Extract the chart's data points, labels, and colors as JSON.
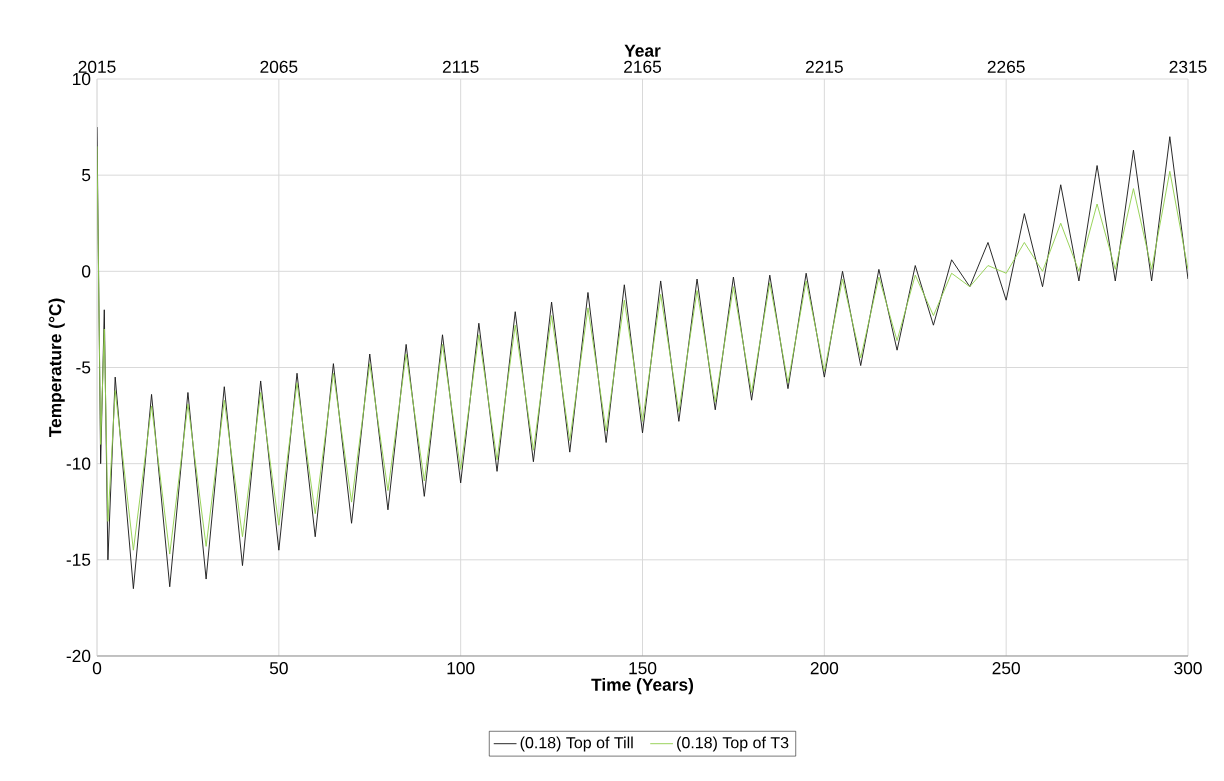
{
  "chart_data": {
    "type": "line",
    "xlabel": "Time (Years)",
    "ylabel": "Temperature (°C)",
    "x2label": "Year",
    "xlim": [
      0,
      300
    ],
    "xticks": [
      0,
      50,
      100,
      150,
      200,
      250,
      300
    ],
    "x2lim": [
      2015,
      2315
    ],
    "x2ticks": [
      2015,
      2065,
      2115,
      2165,
      2215,
      2265,
      2315
    ],
    "ylim": [
      -20,
      10
    ],
    "yticks": [
      -20,
      -15,
      -10,
      -5,
      0,
      5,
      10
    ],
    "grid": true,
    "legend": "bottom",
    "x": [
      0,
      1,
      2,
      3,
      5,
      10,
      15,
      20,
      25,
      30,
      35,
      40,
      45,
      50,
      55,
      60,
      65,
      70,
      75,
      80,
      85,
      90,
      95,
      100,
      105,
      110,
      115,
      120,
      125,
      130,
      135,
      140,
      145,
      150,
      155,
      160,
      165,
      170,
      175,
      180,
      185,
      190,
      195,
      200,
      205,
      210,
      215,
      220,
      225,
      230,
      235,
      240,
      245,
      250,
      255,
      260,
      265,
      270,
      275,
      280,
      285,
      290,
      295,
      300
    ],
    "series": [
      {
        "name": "(0.18) Top of Till",
        "color": "#1a1a1a",
        "values": [
          7.5,
          -10,
          -2,
          -15,
          -5.5,
          -16.5,
          -6.4,
          -16.4,
          -6.3,
          -16,
          -6,
          -15.3,
          -5.7,
          -14.5,
          -5.3,
          -13.8,
          -4.8,
          -13.1,
          -4.3,
          -12.4,
          -3.8,
          -11.7,
          -3.3,
          -11,
          -2.7,
          -10.4,
          -2.1,
          -9.9,
          -1.6,
          -9.4,
          -1.1,
          -8.9,
          -0.7,
          -8.4,
          -0.5,
          -7.8,
          -0.4,
          -7.2,
          -0.3,
          -6.7,
          -0.2,
          -6.1,
          -0.1,
          -5.5,
          0,
          -4.9,
          0.1,
          -4.1,
          0.3,
          -2.8,
          0.6,
          -0.8,
          1.5,
          -1.5,
          3,
          -0.8,
          4.5,
          -0.5,
          5.5,
          -0.5,
          6.3,
          -0.5,
          7,
          -0.4
        ]
      },
      {
        "name": "(0.18) Top of T3",
        "color": "#92d050",
        "values": [
          6.5,
          -9,
          -3,
          -13,
          -6.2,
          -14.5,
          -7,
          -14.7,
          -6.9,
          -14.3,
          -6.7,
          -13.8,
          -6.3,
          -13.2,
          -5.8,
          -12.6,
          -5.3,
          -12,
          -4.8,
          -11.4,
          -4.3,
          -10.9,
          -3.8,
          -10.3,
          -3.3,
          -9.8,
          -2.8,
          -9.3,
          -2.3,
          -8.8,
          -1.9,
          -8.3,
          -1.5,
          -7.8,
          -1.2,
          -7.3,
          -1,
          -6.8,
          -0.8,
          -6.3,
          -0.6,
          -5.8,
          -0.5,
          -5.2,
          -0.4,
          -4.5,
          -0.3,
          -3.6,
          -0.2,
          -2.3,
          -0.1,
          -0.8,
          0.3,
          -0.1,
          1.5,
          0,
          2.5,
          0,
          3.5,
          0.1,
          4.3,
          0.1,
          5.2,
          0.1
        ]
      }
    ]
  }
}
